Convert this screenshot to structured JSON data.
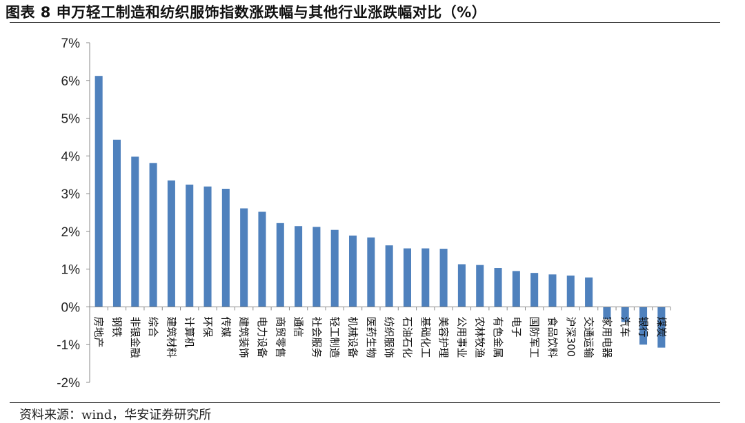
{
  "title": "图表 8 申万轻工制造和纺织服饰指数涨跌幅与其他行业涨跌幅对比（%）",
  "source": "资料来源：wind，华安证券研究所",
  "chart_data": {
    "type": "bar",
    "title": "",
    "xlabel": "",
    "ylabel": "",
    "ylim": [
      -0.02,
      0.07
    ],
    "yticks": [
      -0.02,
      -0.01,
      0.0,
      0.01,
      0.02,
      0.03,
      0.04,
      0.05,
      0.06,
      0.07
    ],
    "ytick_labels": [
      "-2%",
      "-1%",
      "0%",
      "1%",
      "2%",
      "3%",
      "4%",
      "5%",
      "6%",
      "7%"
    ],
    "grid": false,
    "legend": "none",
    "bar_color": "#4F81BD",
    "categories": [
      "房地产",
      "钢铁",
      "非银金融",
      "综合",
      "建筑材料",
      "计算机",
      "环保",
      "传媒",
      "建筑装饰",
      "电力设备",
      "商贸零售",
      "通信",
      "社会服务",
      "轻工制造",
      "机械设备",
      "医药生物",
      "纺织服饰",
      "石油石化",
      "基础化工",
      "美容护理",
      "公用事业",
      "农林牧渔",
      "有色金属",
      "电子",
      "国防军工",
      "食品饮料",
      "沪深300",
      "交通运输",
      "家用电器",
      "汽车",
      "银行",
      "煤炭"
    ],
    "values": [
      0.0612,
      0.0443,
      0.0398,
      0.0381,
      0.0335,
      0.0324,
      0.0319,
      0.0313,
      0.0261,
      0.0252,
      0.0222,
      0.0214,
      0.0212,
      0.0204,
      0.0189,
      0.0184,
      0.0163,
      0.0155,
      0.0155,
      0.0154,
      0.0113,
      0.0111,
      0.0103,
      0.0095,
      0.009,
      0.0086,
      0.0083,
      0.0078,
      -0.0032,
      -0.004,
      -0.01,
      -0.0108
    ]
  }
}
